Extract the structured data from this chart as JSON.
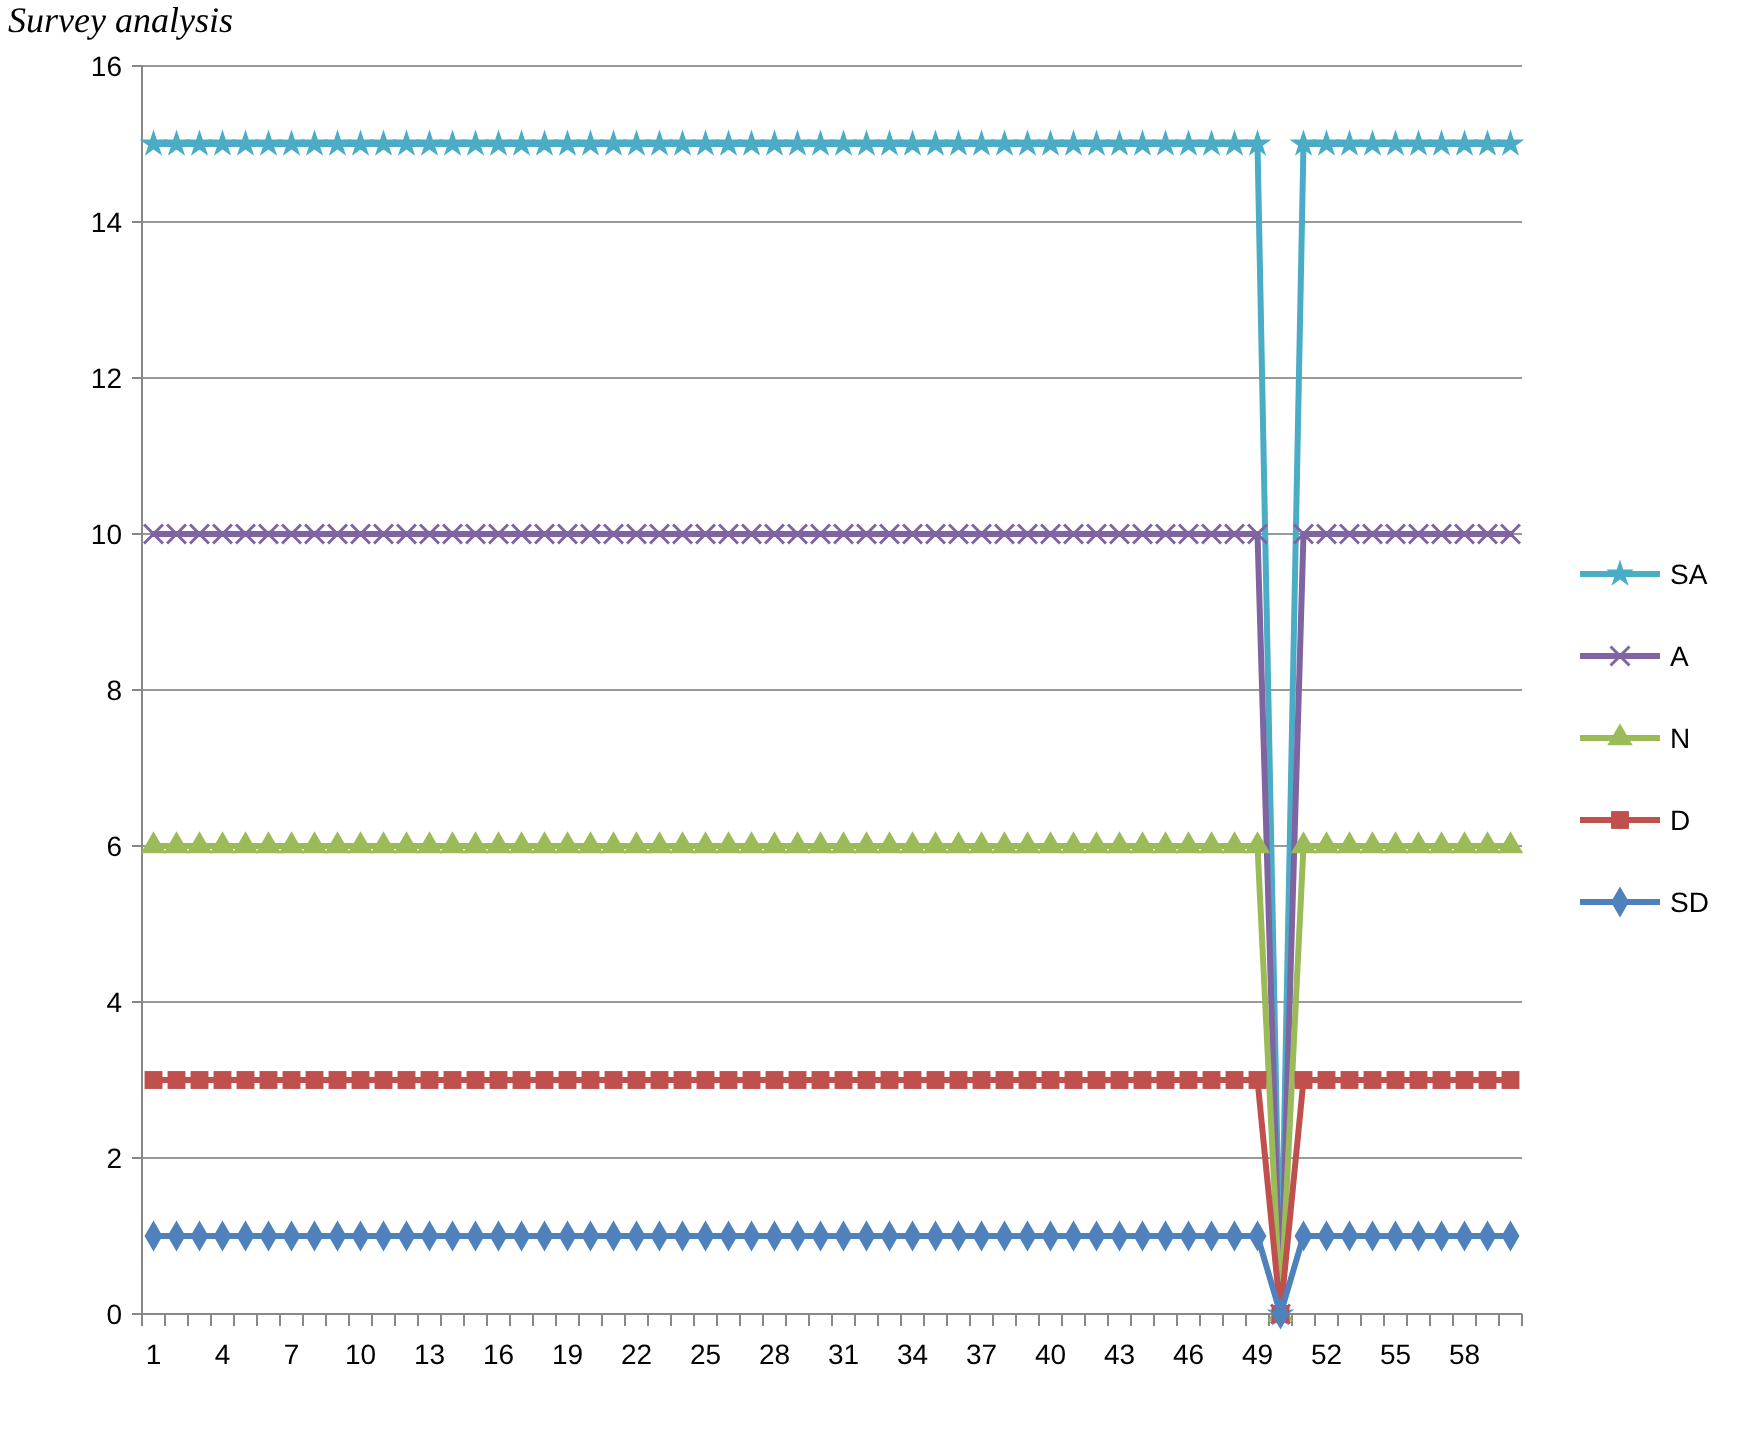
{
  "chart_data": {
    "type": "line",
    "title": "Survey analysis",
    "categories": [
      "1",
      null,
      null,
      "4",
      null,
      null,
      "7",
      null,
      null,
      "10",
      null,
      null,
      "13",
      null,
      null,
      "16",
      null,
      null,
      "19",
      null,
      null,
      "22",
      null,
      null,
      "25",
      null,
      null,
      "28",
      null,
      null,
      "31",
      null,
      null,
      "34",
      null,
      null,
      "37",
      null,
      null,
      "40",
      null,
      null,
      "43",
      null,
      null,
      "46",
      null,
      null,
      "49",
      null,
      null,
      "52",
      null,
      null,
      "55",
      null,
      null,
      "58",
      null,
      null
    ],
    "series": [
      {
        "name": "SA",
        "color": "#4bacc6",
        "marker": "star",
        "values": [
          15,
          15,
          15,
          15,
          15,
          15,
          15,
          15,
          15,
          15,
          15,
          15,
          15,
          15,
          15,
          15,
          15,
          15,
          15,
          15,
          15,
          15,
          15,
          15,
          15,
          15,
          15,
          15,
          15,
          15,
          15,
          15,
          15,
          15,
          15,
          15,
          15,
          15,
          15,
          15,
          15,
          15,
          15,
          15,
          15,
          15,
          15,
          15,
          15,
          0,
          15,
          15,
          15,
          15,
          15,
          15,
          15,
          15,
          15,
          15
        ]
      },
      {
        "name": "A",
        "color": "#8064a2",
        "marker": "cross",
        "values": [
          10,
          10,
          10,
          10,
          10,
          10,
          10,
          10,
          10,
          10,
          10,
          10,
          10,
          10,
          10,
          10,
          10,
          10,
          10,
          10,
          10,
          10,
          10,
          10,
          10,
          10,
          10,
          10,
          10,
          10,
          10,
          10,
          10,
          10,
          10,
          10,
          10,
          10,
          10,
          10,
          10,
          10,
          10,
          10,
          10,
          10,
          10,
          10,
          10,
          0,
          10,
          10,
          10,
          10,
          10,
          10,
          10,
          10,
          10,
          10
        ]
      },
      {
        "name": "N",
        "color": "#9bbb59",
        "marker": "triangle",
        "values": [
          6,
          6,
          6,
          6,
          6,
          6,
          6,
          6,
          6,
          6,
          6,
          6,
          6,
          6,
          6,
          6,
          6,
          6,
          6,
          6,
          6,
          6,
          6,
          6,
          6,
          6,
          6,
          6,
          6,
          6,
          6,
          6,
          6,
          6,
          6,
          6,
          6,
          6,
          6,
          6,
          6,
          6,
          6,
          6,
          6,
          6,
          6,
          6,
          6,
          0,
          6,
          6,
          6,
          6,
          6,
          6,
          6,
          6,
          6,
          6
        ]
      },
      {
        "name": "D",
        "color": "#c0504d",
        "marker": "square",
        "values": [
          3,
          3,
          3,
          3,
          3,
          3,
          3,
          3,
          3,
          3,
          3,
          3,
          3,
          3,
          3,
          3,
          3,
          3,
          3,
          3,
          3,
          3,
          3,
          3,
          3,
          3,
          3,
          3,
          3,
          3,
          3,
          3,
          3,
          3,
          3,
          3,
          3,
          3,
          3,
          3,
          3,
          3,
          3,
          3,
          3,
          3,
          3,
          3,
          3,
          0,
          3,
          3,
          3,
          3,
          3,
          3,
          3,
          3,
          3,
          3
        ]
      },
      {
        "name": "SD",
        "color": "#4f81bd",
        "marker": "diamond",
        "values": [
          1,
          1,
          1,
          1,
          1,
          1,
          1,
          1,
          1,
          1,
          1,
          1,
          1,
          1,
          1,
          1,
          1,
          1,
          1,
          1,
          1,
          1,
          1,
          1,
          1,
          1,
          1,
          1,
          1,
          1,
          1,
          1,
          1,
          1,
          1,
          1,
          1,
          1,
          1,
          1,
          1,
          1,
          1,
          1,
          1,
          1,
          1,
          1,
          1,
          0,
          1,
          1,
          1,
          1,
          1,
          1,
          1,
          1,
          1,
          1
        ]
      }
    ],
    "ylim": [
      0,
      16
    ],
    "yticks": [
      0,
      2,
      4,
      6,
      8,
      10,
      12,
      14,
      16
    ],
    "grid": "y",
    "legend": "right"
  }
}
